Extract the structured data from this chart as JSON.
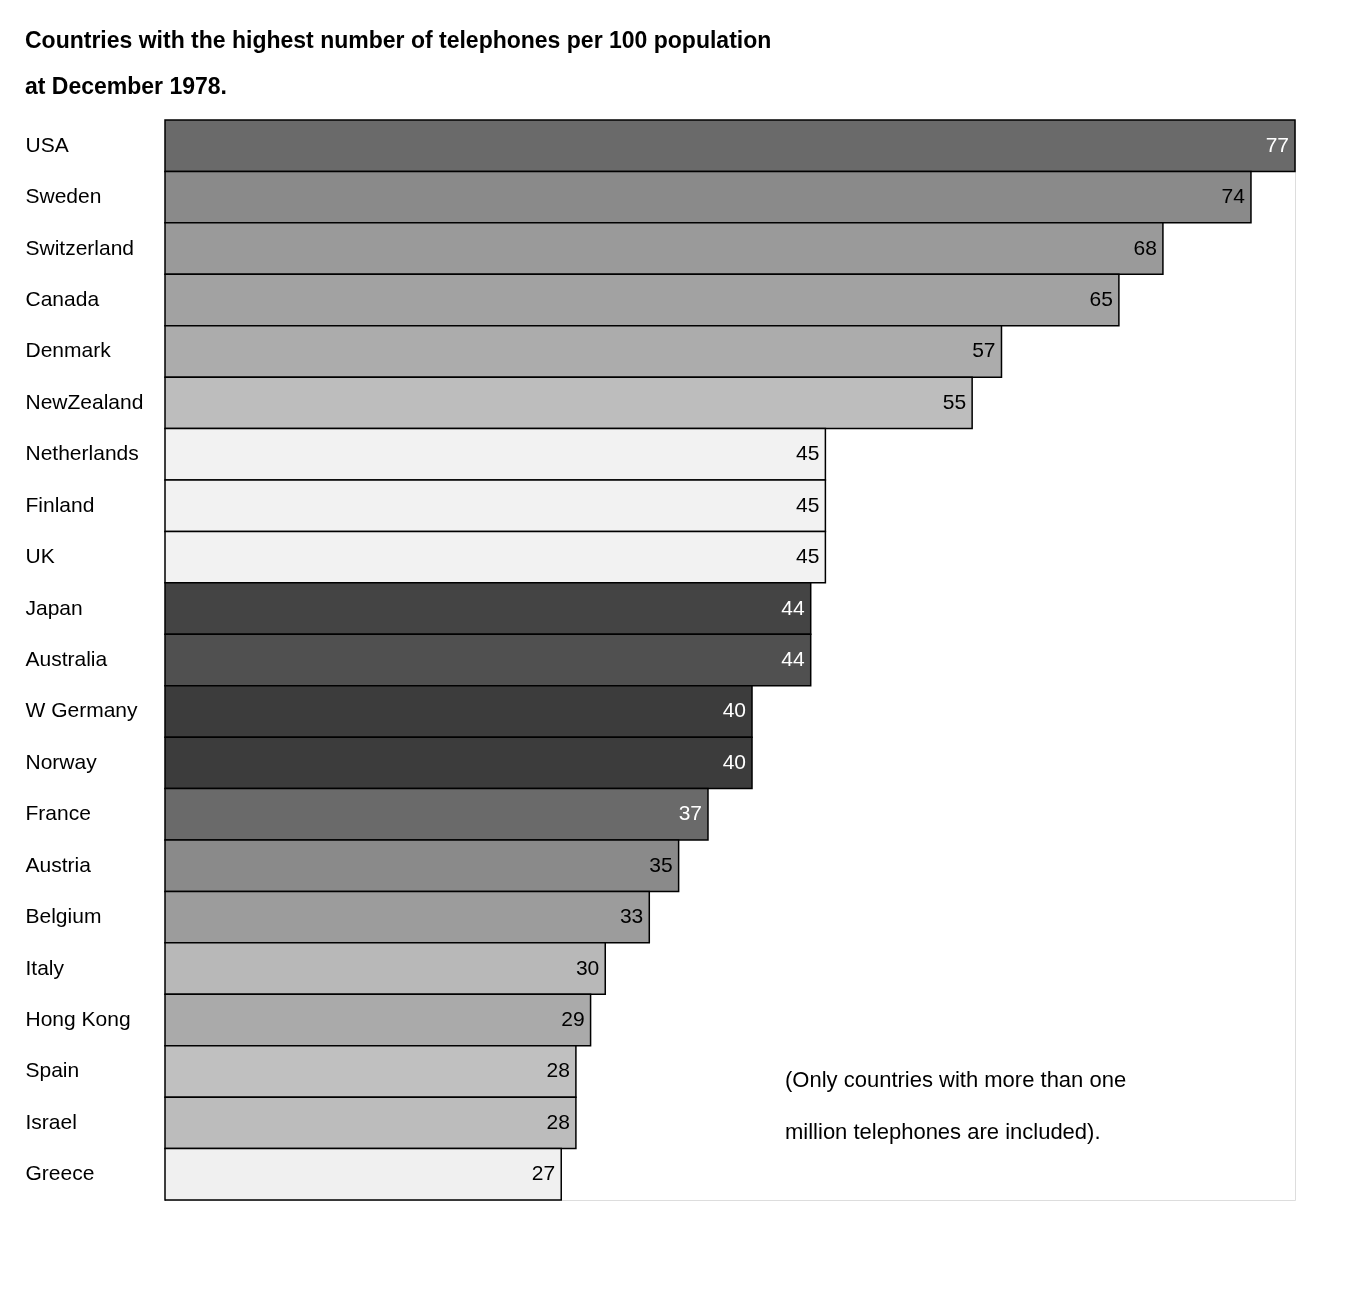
{
  "chart_data": {
    "type": "bar",
    "orientation": "horizontal",
    "title": "Countries with the highest number of telephones per 100 population at December 1978.",
    "categories": [
      "USA",
      "Sweden",
      "Switzerland",
      "Canada",
      "Denmark",
      "NewZealand",
      "Netherlands",
      "Finland",
      "UK",
      "Japan",
      "Australia",
      "W Germany",
      "Norway",
      "France",
      "Austria",
      "Belgium",
      "Italy",
      "Hong Kong",
      "Spain",
      "Israel",
      "Greece"
    ],
    "values": [
      77,
      74,
      68,
      65,
      57,
      55,
      45,
      45,
      45,
      44,
      44,
      40,
      40,
      37,
      35,
      33,
      30,
      29,
      28,
      28,
      27
    ],
    "colors": [
      "#6a6a6a",
      "#8a8a8a",
      "#9a9a9a",
      "#a2a2a2",
      "#acacac",
      "#bdbdbd",
      "#f2f2f2",
      "#f2f2f2",
      "#f2f2f2",
      "#444444",
      "#505050",
      "#3c3c3c",
      "#3c3c3c",
      "#6a6a6a",
      "#8a8a8a",
      "#9c9c9c",
      "#b8b8b8",
      "#aaaaaa",
      "#c0c0c0",
      "#bcbcbc",
      "#f0f0f0"
    ],
    "data_labels": true,
    "annotations": [
      "(Only countries with more than one million telephones are included)."
    ]
  }
}
